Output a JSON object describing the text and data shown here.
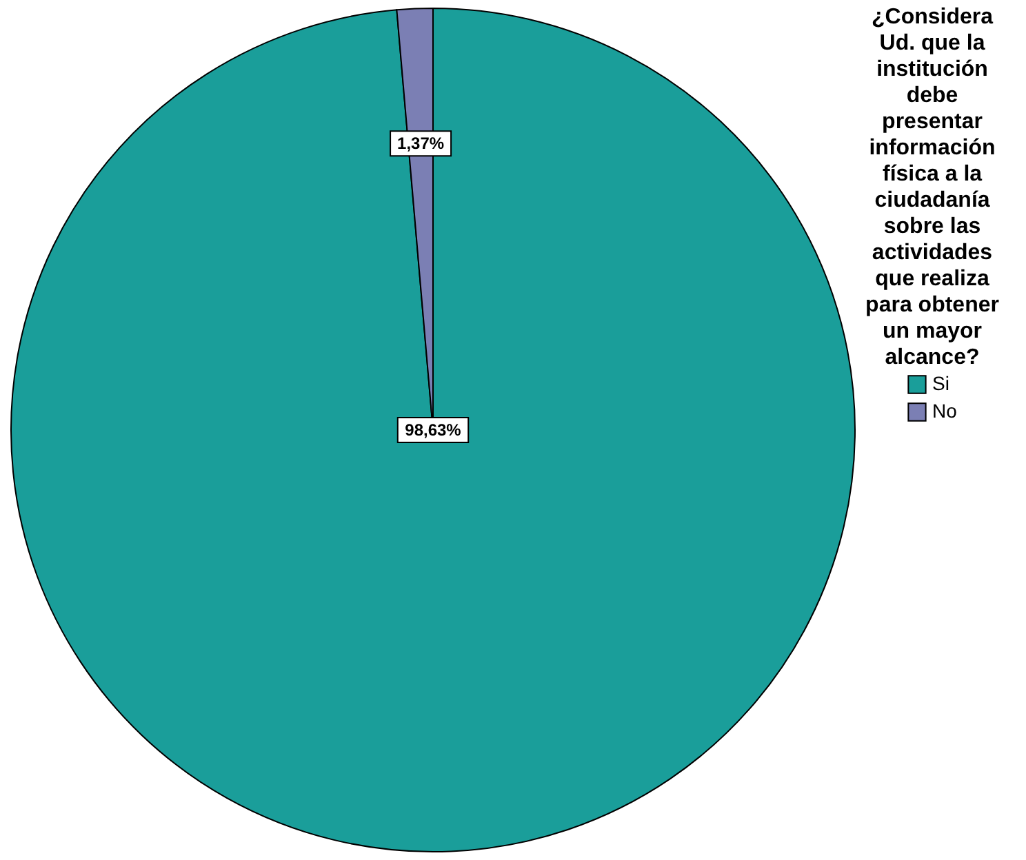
{
  "chart_data": {
    "type": "pie",
    "legend_title": "¿Considera Ud. que la institución debe presentar información física a la ciudadanía sobre las actividades que realiza para obtener un mayor alcance?",
    "categories": [
      "Si",
      "No"
    ],
    "values": [
      98.63,
      1.37
    ],
    "colors": [
      "#1a9e9a",
      "#7b7fb4"
    ],
    "value_labels": [
      "98,63%",
      "1,37%"
    ],
    "legend": "top right"
  }
}
